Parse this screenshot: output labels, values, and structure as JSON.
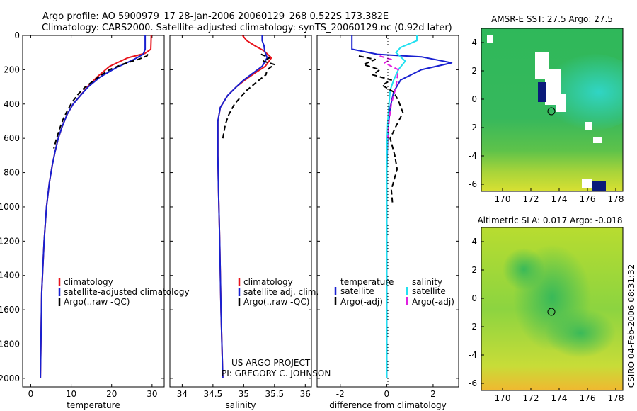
{
  "header": {
    "line1": "Argo profile: AO 5900979_17 28-Jan-2006 20060129_268 0.522S 173.382E",
    "line2": "Climatology: CARS2000. Satellite-adjusted climatology: synTS_20060129.nc (0.92d later)"
  },
  "credit": {
    "line1": "US ARGO PROJECT",
    "line2": "PI: GREGORY C. JOHNSON"
  },
  "timestamp": "CSIRO 04-Feb-2006 08:31:32",
  "colors": {
    "climatology": "#e8141c",
    "satellite": "#1820d0",
    "argo": "#000000",
    "satellite_salinity": "#22e0f0",
    "argo_salinity": "#e020e0"
  },
  "chart_data": [
    {
      "type": "line",
      "panel": "temperature",
      "xlabel": "temperature",
      "ylabel": "",
      "xlim": [
        -2,
        33
      ],
      "ylim": [
        2050,
        0
      ],
      "xticks": [
        "0",
        "10",
        "20",
        "30"
      ],
      "xtick_values": [
        0,
        10,
        20,
        30
      ],
      "yticks": [
        "0",
        "200",
        "400",
        "600",
        "800",
        "1000",
        "1200",
        "1400",
        "1600",
        "1800",
        "2000"
      ],
      "ytick_values": [
        0,
        200,
        400,
        600,
        800,
        1000,
        1200,
        1400,
        1600,
        1800,
        2000
      ],
      "legend_entries": [
        "climatology",
        "satellite-adjusted climatology",
        "Argo(..raw -QC)"
      ],
      "series": [
        {
          "name": "climatology",
          "role": "climatology",
          "style": "solid",
          "x": [
            29.8,
            29.7,
            28.2,
            24.0,
            19.5,
            16.5,
            14.0,
            12.3,
            10.5,
            9.0,
            7.8,
            6.8,
            6.0,
            5.3,
            4.6,
            3.9,
            3.3,
            2.7,
            2.4
          ],
          "y": [
            0,
            80,
            105,
            130,
            180,
            240,
            300,
            350,
            400,
            460,
            530,
            600,
            680,
            760,
            860,
            1000,
            1200,
            1500,
            2000
          ]
        },
        {
          "name": "satellite-adjusted climatology",
          "role": "satellite",
          "style": "solid",
          "x": [
            28.3,
            28.3,
            27.8,
            25.5,
            21.0,
            17.0,
            14.2,
            12.3,
            10.5,
            9.0,
            7.8,
            6.8,
            6.0,
            5.3,
            4.6,
            3.9,
            3.3,
            2.7,
            2.4
          ],
          "y": [
            0,
            80,
            110,
            140,
            190,
            245,
            300,
            350,
            400,
            460,
            530,
            600,
            680,
            760,
            860,
            1000,
            1200,
            1500,
            2000
          ]
        },
        {
          "name": "Argo(..raw -QC)",
          "role": "argo",
          "style": "dashed",
          "x": [
            29.0,
            28.7,
            26.5,
            22.5,
            19.5,
            17.5,
            15.5,
            13.5,
            11.8,
            10.2,
            9.0,
            8.0,
            7.2,
            6.4,
            5.7
          ],
          "y": [
            110,
            120,
            140,
            170,
            200,
            230,
            265,
            300,
            340,
            390,
            440,
            490,
            540,
            600,
            660
          ]
        }
      ]
    },
    {
      "type": "line",
      "panel": "salinity",
      "xlabel": "salinity",
      "xlim": [
        33.8,
        36.1
      ],
      "ylim": [
        2050,
        0
      ],
      "xticks": [
        "34",
        "34.5",
        "35",
        "35.5",
        "36"
      ],
      "xtick_values": [
        34,
        34.5,
        35,
        35.5,
        36
      ],
      "legend_entries": [
        "climatology",
        "satellite adj. clim.",
        "Argo(..raw -QC)"
      ],
      "series": [
        {
          "name": "climatology",
          "role": "climatology",
          "style": "solid",
          "x": [
            34.98,
            35.05,
            35.18,
            35.33,
            35.45,
            35.35,
            35.18,
            35.02,
            34.88,
            34.74,
            34.62,
            34.58,
            34.58,
            34.59,
            34.61,
            34.63,
            34.66
          ],
          "y": [
            0,
            30,
            60,
            90,
            130,
            180,
            220,
            260,
            300,
            350,
            420,
            500,
            700,
            900,
            1200,
            1600,
            2000
          ]
        },
        {
          "name": "satellite adj. clim.",
          "role": "satellite",
          "style": "solid",
          "x": [
            35.3,
            35.3,
            35.33,
            35.34,
            35.38,
            35.3,
            35.15,
            35.0,
            34.88,
            34.74,
            34.62,
            34.58,
            34.58,
            34.59,
            34.61,
            34.63,
            34.66
          ],
          "y": [
            0,
            30,
            60,
            90,
            130,
            180,
            220,
            260,
            300,
            350,
            420,
            500,
            700,
            900,
            1200,
            1600,
            2000
          ]
        },
        {
          "name": "Argo(..raw -QC)",
          "role": "argo",
          "style": "dashed",
          "x": [
            35.28,
            35.42,
            35.32,
            35.5,
            35.38,
            35.36,
            35.25,
            35.15,
            35.05,
            34.95,
            34.85,
            34.76,
            34.7,
            34.66
          ],
          "y": [
            110,
            130,
            150,
            170,
            200,
            230,
            260,
            290,
            320,
            360,
            400,
            460,
            520,
            600
          ]
        }
      ]
    },
    {
      "type": "line",
      "panel": "difference",
      "xlabel": "difference from climatology",
      "xlim": [
        -3,
        3.1
      ],
      "ylim": [
        2050,
        0
      ],
      "xticks": [
        "-2",
        "0",
        "2"
      ],
      "xtick_values": [
        -2,
        0,
        2
      ],
      "legend_groups": [
        {
          "title": "temperature",
          "entries": [
            "satellite",
            "Argo(-adj)"
          ]
        },
        {
          "title": "salinity",
          "entries": [
            "satellite",
            "Argo(-adj)"
          ]
        }
      ],
      "series": [
        {
          "name": "temperature satellite",
          "role": "satellite",
          "style": "solid",
          "x": [
            -1.5,
            -1.5,
            -0.4,
            1.5,
            2.8,
            1.5,
            0.6,
            0.3,
            0.15,
            0.05,
            0.0,
            0.0,
            0.0,
            0.0
          ],
          "y": [
            0,
            80,
            110,
            125,
            160,
            200,
            260,
            330,
            420,
            550,
            800,
            1200,
            1600,
            2000
          ]
        },
        {
          "name": "salinity satellite",
          "role": "satellite_salinity",
          "style": "solid",
          "x": [
            1.3,
            1.3,
            0.6,
            0.4,
            0.8,
            0.5,
            0.3,
            0.15,
            0.1,
            0.05,
            0.02,
            0.0,
            0.0,
            0.0,
            0.0
          ],
          "y": [
            0,
            30,
            70,
            100,
            150,
            200,
            260,
            320,
            400,
            500,
            600,
            800,
            1200,
            1600,
            2000
          ]
        },
        {
          "name": "temperature Argo(-adj)",
          "role": "argo",
          "style": "dashed",
          "x": [
            -1.2,
            -0.5,
            -1.0,
            -0.3,
            -0.6,
            0.2,
            -0.2,
            0.3,
            0.5,
            0.7,
            0.4,
            0.15,
            0.35,
            0.45,
            0.3,
            0.2,
            0.25
          ],
          "y": [
            120,
            140,
            170,
            200,
            230,
            260,
            290,
            330,
            380,
            450,
            530,
            600,
            700,
            780,
            850,
            900,
            980
          ]
        },
        {
          "name": "salinity Argo(-adj)",
          "role": "argo_salinity",
          "style": "dashed",
          "x": [
            -0.3,
            0.2,
            -0.1,
            0.5,
            0.4,
            0.2,
            0.1,
            0.05
          ],
          "y": [
            120,
            140,
            160,
            200,
            300,
            400,
            500,
            600
          ]
        }
      ]
    },
    {
      "type": "heatmap",
      "panel": "sst-map",
      "title": "AMSR-E SST: 27.5 Argo: 27.5",
      "xlim": [
        168.5,
        178.5
      ],
      "ylim": [
        -6.5,
        5
      ],
      "xticks": [
        "170",
        "172",
        "174",
        "176",
        "178"
      ],
      "xtick_values": [
        170,
        172,
        174,
        176,
        178
      ],
      "yticks": [
        "4",
        "2",
        "0",
        "-2",
        "-4",
        "-6"
      ],
      "ytick_values": [
        4,
        2,
        0,
        -2,
        -4,
        -6
      ],
      "argo_location": {
        "lon": 173.382,
        "lat": -0.522
      }
    },
    {
      "type": "heatmap",
      "panel": "sla-map",
      "title": "Altimetric SLA: 0.017 Argo: -0.018",
      "xlim": [
        168.5,
        178.5
      ],
      "ylim": [
        -6.5,
        5
      ],
      "xticks": [
        "170",
        "172",
        "174",
        "176",
        "178"
      ],
      "xtick_values": [
        170,
        172,
        174,
        176,
        178
      ],
      "yticks": [
        "4",
        "2",
        "0",
        "-2",
        "-4",
        "-6"
      ],
      "ytick_values": [
        4,
        2,
        0,
        -2,
        -4,
        -6
      ],
      "argo_location": {
        "lon": 173.382,
        "lat": -0.522
      }
    }
  ]
}
